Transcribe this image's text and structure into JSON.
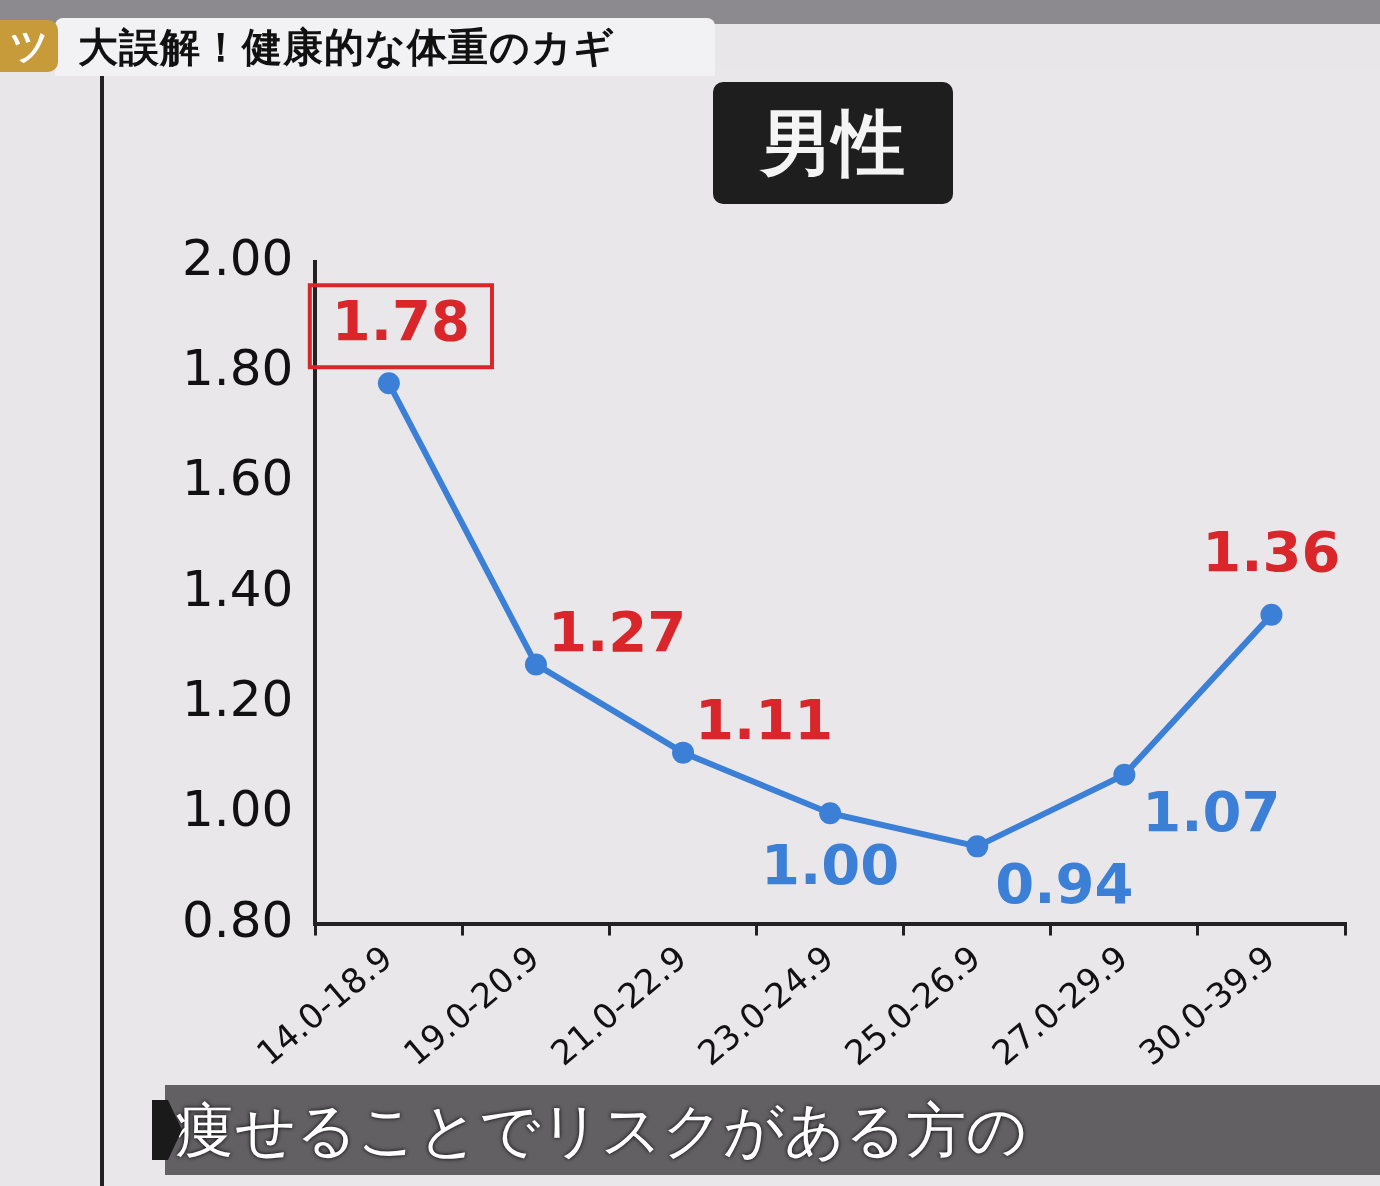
{
  "chart_data": {
    "type": "line",
    "title": "男性",
    "subtitle": "大誤解！健康的な体重のカギ",
    "annotations": [
      "ツ",
      "痩せることでリスクがある方の"
    ],
    "categories": [
      "14.0-18.9",
      "19.0-20.9",
      "21.0-22.9",
      "23.0-24.9",
      "25.0-26.9",
      "27.0-29.9",
      "30.0-39.9"
    ],
    "series": [
      {
        "color": "#3b80d6",
        "values": [
          1.78,
          1.27,
          1.11,
          1.0,
          0.94,
          1.07,
          1.36
        ],
        "value_labels": [
          "1.78",
          "1.27",
          "1.11",
          "1.00",
          "0.94",
          "1.07",
          "1.36"
        ]
      }
    ],
    "ylim": [
      0.8,
      2.0
    ],
    "yticks": [
      {
        "value": 0.8,
        "label": "0.80"
      },
      {
        "value": 1.0,
        "label": "1.00"
      },
      {
        "value": 1.2,
        "label": "1.20"
      },
      {
        "value": 1.4,
        "label": "1.40"
      },
      {
        "value": 1.6,
        "label": "1.60"
      },
      {
        "value": 1.8,
        "label": "1.80"
      },
      {
        "value": 2.0,
        "label": "2.00"
      }
    ],
    "grid": false,
    "legend": false,
    "marker": "circle",
    "line_style": "solid"
  }
}
